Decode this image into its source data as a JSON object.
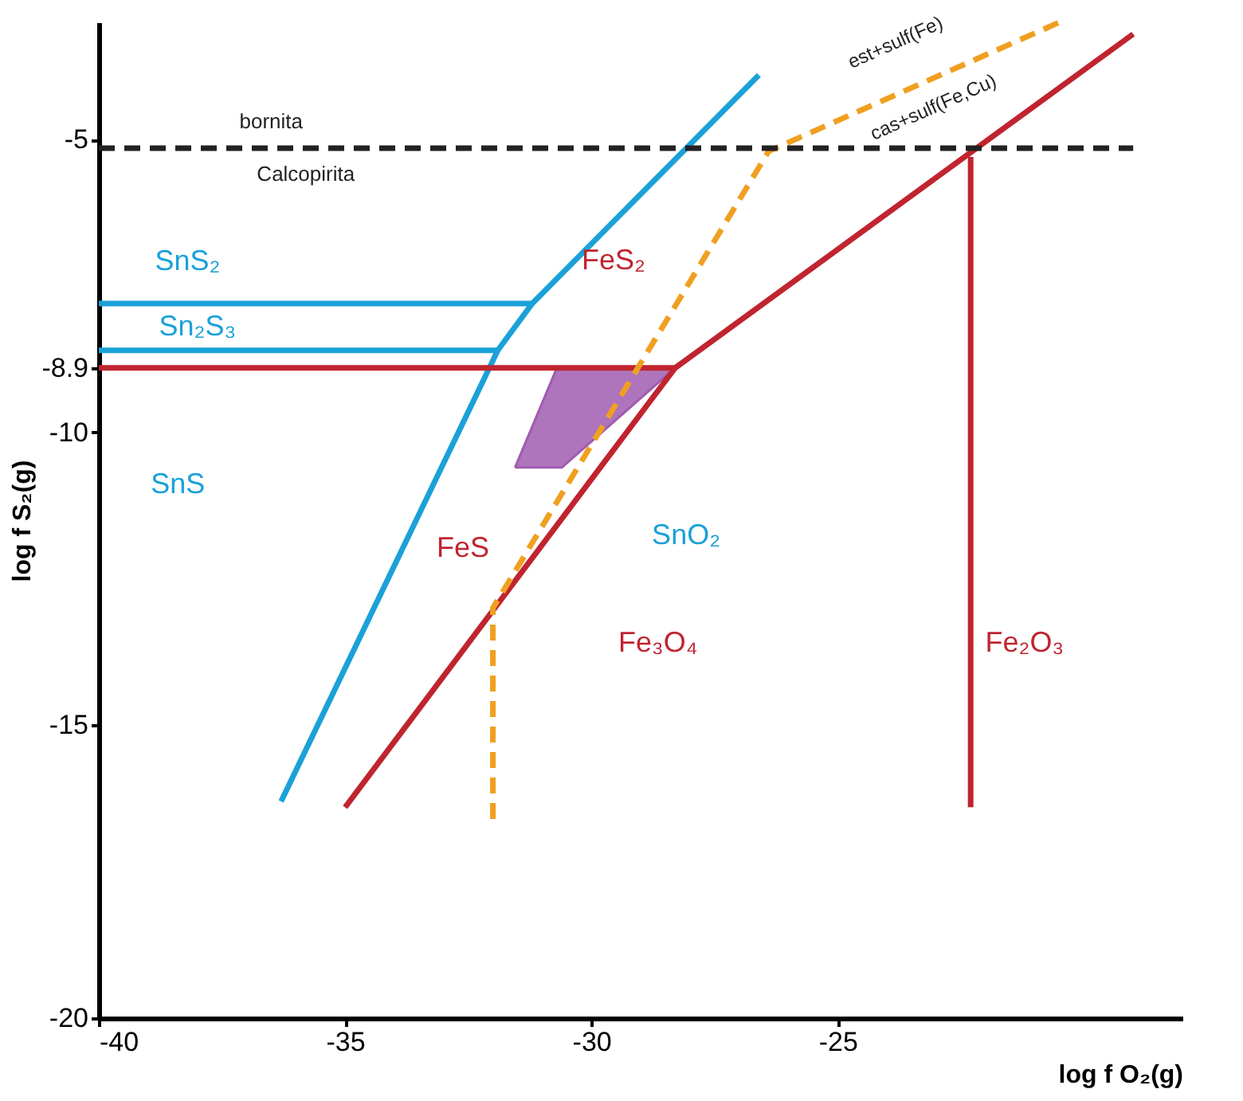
{
  "chart_data": {
    "type": "line",
    "xlabel": "log f O₂(g)",
    "ylabel": "log f S₂(g)",
    "xlim": [
      -40,
      -18
    ],
    "ylim": [
      -20,
      -3
    ],
    "xticks": [
      -40,
      -35,
      -30,
      -25
    ],
    "yticks": [
      -20,
      -15,
      -10,
      {
        "value": -8.9,
        "label": "-8.9"
      },
      -5
    ],
    "grid": false,
    "marker": "none",
    "series": [
      {
        "type": "area",
        "color": "#a05cb0",
        "x": [
          -31.55,
          -30.7,
          -28.3,
          -30.6,
          -31.55
        ],
        "values": [
          -10.6,
          -8.9,
          -8.9,
          -10.6,
          -10.6
        ]
      },
      {
        "color": "#1ba1d8",
        "x": [
          -36.3,
          -31.9,
          -31.2,
          -26.6
        ],
        "values": [
          -16.3,
          -8.6,
          -7.8,
          -3.9
        ]
      },
      {
        "color": "#1ba1d8",
        "x": [
          -40,
          -31.2
        ],
        "values": [
          -7.8,
          -7.8
        ]
      },
      {
        "color": "#1ba1d8",
        "x": [
          -40,
          -31.9
        ],
        "values": [
          -8.6,
          -8.6
        ]
      },
      {
        "color": "#c0242f",
        "x": [
          -35.0,
          -28.3,
          -19.0
        ],
        "values": [
          -16.4,
          -8.9,
          -3.2
        ]
      },
      {
        "color": "#c0242f",
        "x": [
          -40,
          -28.3
        ],
        "values": [
          -8.9,
          -8.9
        ]
      },
      {
        "color": "#c0242f",
        "x": [
          -22.3,
          -22.3
        ],
        "values": [
          -16.4,
          -5.3
        ]
      },
      {
        "color": "#f0a020",
        "line_style": "dashed",
        "x": [
          -32.0,
          -32.0,
          -26.4,
          -20.5
        ],
        "values": [
          -16.6,
          -13.0,
          -5.2,
          -3.0
        ]
      },
      {
        "color": "#222222",
        "line_style": "dashed",
        "x": [
          -40,
          -19.0
        ],
        "values": [
          -5.15,
          -5.15
        ]
      }
    ],
    "annotations": [
      "bornita",
      "Calcopirita",
      "SnS₂",
      "Sn₂S₃",
      "SnS",
      "FeS₂",
      "FeS",
      "SnO₂",
      "Fe₃O₄",
      "Fe₂O₃",
      "est+sulf(Fe)",
      "cas+sulf(Fe,Cu)"
    ]
  }
}
